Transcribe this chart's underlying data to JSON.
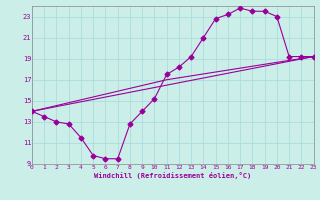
{
  "bg_color": "#cceee8",
  "grid_color": "#aadddd",
  "line_color": "#990099",
  "xlabel": "Windchill (Refroidissement éolien,°C)",
  "xlim": [
    0,
    23
  ],
  "ylim": [
    9,
    24
  ],
  "yticks": [
    9,
    11,
    13,
    15,
    17,
    19,
    21,
    23
  ],
  "xticks": [
    0,
    1,
    2,
    3,
    4,
    5,
    6,
    7,
    8,
    9,
    10,
    11,
    12,
    13,
    14,
    15,
    16,
    17,
    18,
    19,
    20,
    21,
    22,
    23
  ],
  "line1_x": [
    0,
    1,
    2,
    3,
    4,
    5,
    6,
    7,
    8,
    9,
    10,
    11,
    12,
    13,
    14,
    15,
    16,
    17,
    18,
    19,
    20,
    21,
    22,
    23
  ],
  "line1_y": [
    14.0,
    13.5,
    13.0,
    12.8,
    11.5,
    9.8,
    9.5,
    9.5,
    12.8,
    14.0,
    15.2,
    17.5,
    18.2,
    19.2,
    21.0,
    22.8,
    23.2,
    23.8,
    23.5,
    23.5,
    23.0,
    19.2,
    19.2,
    19.2
  ],
  "line2_x": [
    0,
    23
  ],
  "line2_y": [
    14.0,
    19.2
  ],
  "line3_x": [
    0,
    11,
    23
  ],
  "line3_y": [
    14.0,
    17.0,
    19.2
  ]
}
